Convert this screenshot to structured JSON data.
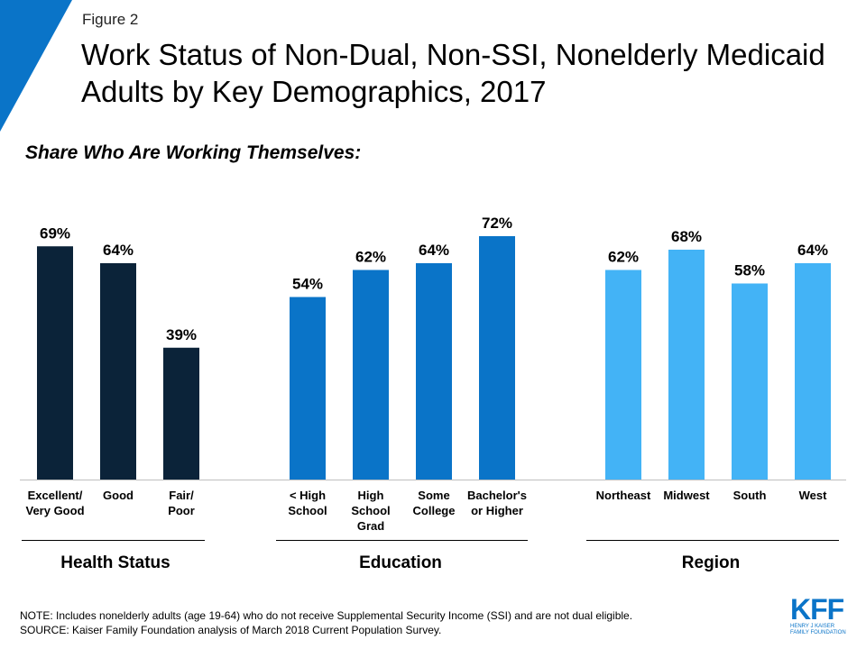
{
  "figure_label": "Figure 2",
  "title": "Work Status of Non-Dual, Non-SSI, Nonelderly Medicaid Adults by Key Demographics, 2017",
  "subtitle": "Share Who Are Working Themselves:",
  "chart_data": {
    "type": "bar",
    "ylim": [
      0,
      100
    ],
    "grid": false,
    "value_unit": "%",
    "groups": [
      {
        "name": "Health Status",
        "color": "#0b2339",
        "bars": [
          {
            "label": "Excellent/\nVery Good",
            "value": 69,
            "value_label": "69%"
          },
          {
            "label": "Good",
            "value": 64,
            "value_label": "64%"
          },
          {
            "label": "Fair/\nPoor",
            "value": 39,
            "value_label": "39%"
          }
        ]
      },
      {
        "name": "Education",
        "color": "#0a74c8",
        "bars": [
          {
            "label": "< High\nSchool",
            "value": 54,
            "value_label": "54%"
          },
          {
            "label": "High\nSchool\nGrad",
            "value": 62,
            "value_label": "62%"
          },
          {
            "label": "Some\nCollege",
            "value": 64,
            "value_label": "64%"
          },
          {
            "label": "Bachelor's\nor Higher",
            "value": 72,
            "value_label": "72%"
          }
        ]
      },
      {
        "name": "Region",
        "color": "#43b3f6",
        "bars": [
          {
            "label": "Northeast",
            "value": 62,
            "value_label": "62%"
          },
          {
            "label": "Midwest",
            "value": 68,
            "value_label": "68%"
          },
          {
            "label": "South",
            "value": 58,
            "value_label": "58%"
          },
          {
            "label": "West",
            "value": 64,
            "value_label": "64%"
          }
        ]
      }
    ]
  },
  "notes": {
    "note": "NOTE: Includes nonelderly adults (age 19-64) who do not receive Supplemental Security Income (SSI) and are not dual eligible.",
    "source": "SOURCE: Kaiser Family Foundation analysis of March 2018 Current Population Survey."
  },
  "logo": {
    "mark": "KFF",
    "line1": "HENRY J KAISER",
    "line2": "FAMILY FOUNDATION"
  },
  "colors": {
    "accent": "#0a74c8"
  }
}
